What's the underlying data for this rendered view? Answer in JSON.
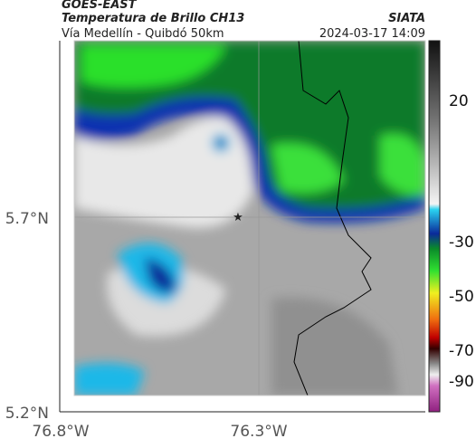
{
  "header": {
    "source": "GOES-EAST",
    "title": "Temperatura de Brillo CH13",
    "subtitle": "Vía Medellín - Quibdó 50km",
    "credit": "SIATA",
    "timestamp": "2024-03-17 14:09"
  },
  "axes": {
    "lat_labels": [
      "5.7°N",
      "5.2°N"
    ],
    "lon_labels": [
      "76.8°W",
      "76.3°W"
    ]
  },
  "colorbar": {
    "ticks": [
      20,
      -30,
      -50,
      -70,
      -90
    ]
  }
}
